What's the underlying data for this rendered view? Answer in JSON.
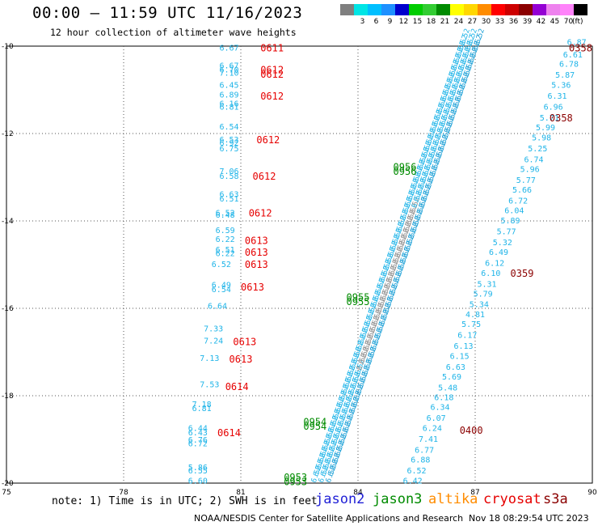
{
  "header": {
    "title": "00:00 – 11:59 UTC 11/16/2023",
    "subtitle": "12 hour collection of altimeter wave heights"
  },
  "legend": {
    "unit": "(ft)",
    "bins": [
      {
        "label": "",
        "color": "#7f7f7f"
      },
      {
        "label": "3",
        "color": "#00e5e5"
      },
      {
        "label": "6",
        "color": "#00bfff"
      },
      {
        "label": "9",
        "color": "#1e90ff"
      },
      {
        "label": "12",
        "color": "#0000cd"
      },
      {
        "label": "15",
        "color": "#00cd00"
      },
      {
        "label": "18",
        "color": "#32cd32"
      },
      {
        "label": "21",
        "color": "#008b00"
      },
      {
        "label": "24",
        "color": "#ffff00"
      },
      {
        "label": "27",
        "color": "#ffd700"
      },
      {
        "label": "30",
        "color": "#ff8c00"
      },
      {
        "label": "33",
        "color": "#ff0000"
      },
      {
        "label": "36",
        "color": "#cd0000"
      },
      {
        "label": "39",
        "color": "#8b0000"
      },
      {
        "label": "42",
        "color": "#9400d3"
      },
      {
        "label": "45",
        "color": "#ee82ee"
      },
      {
        "label": "70",
        "color": "#ff83fa"
      },
      {
        "label": "",
        "color": "#000000"
      }
    ]
  },
  "footer": {
    "note": "note: 1) Time is in UTC; 2) SWH is in feet",
    "satellites": [
      {
        "name": "jason2",
        "color": "#1f1fd6"
      },
      {
        "name": "jason3",
        "color": "#008b00"
      },
      {
        "name": "altika",
        "color": "#ff8c00"
      },
      {
        "name": "cryosat",
        "color": "#e60000"
      },
      {
        "name": "s3a",
        "color": "#8b0000"
      }
    ],
    "credit": "NOAA/NESDIS Center for Satellite Applications and Research",
    "timestamp": "Nov 18 08:29:54 UTC 2023"
  },
  "chart_data": {
    "type": "scatter",
    "title": "00:00 – 11:59 UTC 11/16/2023",
    "subtitle": "12 hour collection of altimeter wave heights",
    "xlabel": "",
    "ylabel": "",
    "xlim": [
      75,
      90
    ],
    "ylim": [
      -20,
      -10
    ],
    "xticks": [
      75,
      78,
      81,
      84,
      87,
      90
    ],
    "yticks": [
      -10,
      -12,
      -14,
      -16,
      -18,
      -20
    ],
    "ytick_labels": [
      "-10",
      "-12",
      "-14",
      "-16",
      "-18",
      "-20"
    ],
    "grid": true,
    "legend_placement": "bottom",
    "colors": {
      "swh": "#1fb4e8",
      "track_dark": "#1a9fd6",
      "track_gray": "#8f8f8f",
      "cryosat_time": "#e60000",
      "s3a_time": "#8b0000",
      "jason3_time": "#008b00"
    },
    "swh_values": [
      {
        "x": 80.7,
        "y": -10.05,
        "v": "6.67"
      },
      {
        "x": 80.7,
        "y": -10.45,
        "v": "6.67"
      },
      {
        "x": 80.7,
        "y": -10.55,
        "v": "6.70"
      },
      {
        "x": 80.7,
        "y": -10.62,
        "v": "7.10"
      },
      {
        "x": 80.7,
        "y": -10.9,
        "v": "6.45"
      },
      {
        "x": 80.7,
        "y": -11.12,
        "v": "6.89"
      },
      {
        "x": 80.7,
        "y": -11.32,
        "v": "6.16"
      },
      {
        "x": 80.7,
        "y": -11.4,
        "v": "6.81"
      },
      {
        "x": 80.7,
        "y": -11.85,
        "v": "6.54"
      },
      {
        "x": 80.7,
        "y": -12.15,
        "v": "6.53"
      },
      {
        "x": 80.7,
        "y": -12.22,
        "v": "6.92"
      },
      {
        "x": 80.7,
        "y": -12.35,
        "v": "6.75"
      },
      {
        "x": 80.7,
        "y": -12.87,
        "v": "7.06"
      },
      {
        "x": 80.7,
        "y": -12.98,
        "v": "6.58"
      },
      {
        "x": 80.7,
        "y": -13.4,
        "v": "6.63"
      },
      {
        "x": 80.7,
        "y": -13.5,
        "v": "6.51"
      },
      {
        "x": 80.6,
        "y": -13.82,
        "v": "6.52"
      },
      {
        "x": 80.6,
        "y": -13.87,
        "v": "6.48"
      },
      {
        "x": 80.6,
        "y": -14.22,
        "v": "6.59"
      },
      {
        "x": 80.6,
        "y": -14.43,
        "v": "6.22"
      },
      {
        "x": 80.6,
        "y": -14.67,
        "v": "6.51"
      },
      {
        "x": 80.6,
        "y": -14.75,
        "v": "6.22"
      },
      {
        "x": 80.5,
        "y": -15.0,
        "v": "6.52"
      },
      {
        "x": 80.5,
        "y": -15.47,
        "v": "6.49"
      },
      {
        "x": 80.5,
        "y": -15.57,
        "v": "6.54"
      },
      {
        "x": 80.4,
        "y": -15.95,
        "v": "6.64"
      },
      {
        "x": 80.3,
        "y": -16.47,
        "v": "7.33"
      },
      {
        "x": 80.3,
        "y": -16.75,
        "v": "7.24"
      },
      {
        "x": 80.2,
        "y": -17.15,
        "v": "7.13"
      },
      {
        "x": 80.2,
        "y": -17.75,
        "v": "7.53"
      },
      {
        "x": 80.0,
        "y": -18.2,
        "v": "7.18"
      },
      {
        "x": 80.0,
        "y": -18.3,
        "v": "6.81"
      },
      {
        "x": 79.9,
        "y": -18.75,
        "v": "6.44"
      },
      {
        "x": 79.9,
        "y": -18.85,
        "v": "6.43"
      },
      {
        "x": 79.9,
        "y": -19.02,
        "v": "6.76"
      },
      {
        "x": 79.9,
        "y": -19.1,
        "v": "6.72"
      },
      {
        "x": 79.9,
        "y": -19.65,
        "v": "5.86"
      },
      {
        "x": 79.9,
        "y": -19.72,
        "v": "6.55"
      },
      {
        "x": 79.9,
        "y": -19.95,
        "v": "6.60"
      },
      {
        "x": 89.6,
        "y": -9.92,
        "v": "6.87"
      },
      {
        "x": 89.5,
        "y": -10.2,
        "v": "6.61"
      },
      {
        "x": 89.4,
        "y": -10.42,
        "v": "6.78"
      },
      {
        "x": 89.3,
        "y": -10.67,
        "v": "5.87"
      },
      {
        "x": 89.2,
        "y": -10.9,
        "v": "5.36"
      },
      {
        "x": 89.1,
        "y": -11.15,
        "v": "6.31"
      },
      {
        "x": 89.0,
        "y": -11.4,
        "v": "6.96"
      },
      {
        "x": 88.9,
        "y": -11.65,
        "v": "5.71"
      },
      {
        "x": 88.8,
        "y": -11.87,
        "v": "5.99"
      },
      {
        "x": 88.7,
        "y": -12.1,
        "v": "5.98"
      },
      {
        "x": 88.6,
        "y": -12.35,
        "v": "5.25"
      },
      {
        "x": 88.5,
        "y": -12.6,
        "v": "6.74"
      },
      {
        "x": 88.4,
        "y": -12.82,
        "v": "5.96"
      },
      {
        "x": 88.3,
        "y": -13.07,
        "v": "5.77"
      },
      {
        "x": 88.2,
        "y": -13.3,
        "v": "5.66"
      },
      {
        "x": 88.1,
        "y": -13.55,
        "v": "6.72"
      },
      {
        "x": 88.0,
        "y": -13.77,
        "v": "6.04"
      },
      {
        "x": 87.9,
        "y": -14.0,
        "v": "5.89"
      },
      {
        "x": 87.8,
        "y": -14.25,
        "v": "5.77"
      },
      {
        "x": 87.7,
        "y": -14.5,
        "v": "5.32"
      },
      {
        "x": 87.6,
        "y": -14.72,
        "v": "6.49"
      },
      {
        "x": 87.5,
        "y": -14.97,
        "v": "6.12"
      },
      {
        "x": 87.4,
        "y": -15.2,
        "v": "6.10"
      },
      {
        "x": 87.3,
        "y": -15.45,
        "v": "5.31"
      },
      {
        "x": 87.2,
        "y": -15.68,
        "v": "5.79"
      },
      {
        "x": 87.1,
        "y": -15.92,
        "v": "5.34"
      },
      {
        "x": 87.0,
        "y": -16.15,
        "v": "4.81"
      },
      {
        "x": 86.9,
        "y": -16.37,
        "v": "5.75"
      },
      {
        "x": 86.8,
        "y": -16.62,
        "v": "6.17"
      },
      {
        "x": 86.7,
        "y": -16.87,
        "v": "6.13"
      },
      {
        "x": 86.6,
        "y": -17.1,
        "v": "6.15"
      },
      {
        "x": 86.5,
        "y": -17.35,
        "v": "6.63"
      },
      {
        "x": 86.4,
        "y": -17.57,
        "v": "5.69"
      },
      {
        "x": 86.3,
        "y": -17.82,
        "v": "5.48"
      },
      {
        "x": 86.2,
        "y": -18.05,
        "v": "6.18"
      },
      {
        "x": 86.1,
        "y": -18.27,
        "v": "6.34"
      },
      {
        "x": 86.0,
        "y": -18.52,
        "v": "6.07"
      },
      {
        "x": 85.9,
        "y": -18.75,
        "v": "6.24"
      },
      {
        "x": 85.8,
        "y": -19.0,
        "v": "7.41"
      },
      {
        "x": 85.7,
        "y": -19.25,
        "v": "6.77"
      },
      {
        "x": 85.6,
        "y": -19.47,
        "v": "6.88"
      },
      {
        "x": 85.5,
        "y": -19.72,
        "v": "6.52"
      },
      {
        "x": 85.4,
        "y": -19.95,
        "v": "6.42"
      }
    ],
    "time_labels": [
      {
        "x": 81.8,
        "y": -10.05,
        "v": "0611",
        "sat": "cryosat"
      },
      {
        "x": 81.8,
        "y": -10.55,
        "v": "0612",
        "sat": "cryosat"
      },
      {
        "x": 81.8,
        "y": -10.65,
        "v": "0612",
        "sat": "cryosat"
      },
      {
        "x": 81.8,
        "y": -11.15,
        "v": "0612",
        "sat": "cryosat"
      },
      {
        "x": 81.7,
        "y": -12.15,
        "v": "0612",
        "sat": "cryosat"
      },
      {
        "x": 81.6,
        "y": -12.98,
        "v": "0612",
        "sat": "cryosat"
      },
      {
        "x": 81.5,
        "y": -13.82,
        "v": "0612",
        "sat": "cryosat"
      },
      {
        "x": 81.4,
        "y": -14.45,
        "v": "0613",
        "sat": "cryosat"
      },
      {
        "x": 81.4,
        "y": -14.72,
        "v": "0613",
        "sat": "cryosat"
      },
      {
        "x": 81.4,
        "y": -15.0,
        "v": "0613",
        "sat": "cryosat"
      },
      {
        "x": 81.3,
        "y": -15.52,
        "v": "0613",
        "sat": "cryosat"
      },
      {
        "x": 81.1,
        "y": -16.77,
        "v": "0613",
        "sat": "cryosat"
      },
      {
        "x": 81.0,
        "y": -17.17,
        "v": "0613",
        "sat": "cryosat"
      },
      {
        "x": 80.9,
        "y": -17.8,
        "v": "0614",
        "sat": "cryosat"
      },
      {
        "x": 80.7,
        "y": -18.85,
        "v": "0614",
        "sat": "cryosat"
      },
      {
        "x": 85.2,
        "y": -12.77,
        "v": "0956",
        "sat": "jason3"
      },
      {
        "x": 85.2,
        "y": -12.87,
        "v": "0956",
        "sat": "jason3"
      },
      {
        "x": 84.0,
        "y": -15.75,
        "v": "0955",
        "sat": "jason3"
      },
      {
        "x": 84.0,
        "y": -15.85,
        "v": "0955",
        "sat": "jason3"
      },
      {
        "x": 82.9,
        "y": -18.6,
        "v": "0954",
        "sat": "jason3"
      },
      {
        "x": 82.9,
        "y": -18.7,
        "v": "0954",
        "sat": "jason3"
      },
      {
        "x": 82.4,
        "y": -19.87,
        "v": "0953",
        "sat": "jason3"
      },
      {
        "x": 82.4,
        "y": -19.97,
        "v": "0953",
        "sat": "jason3"
      },
      {
        "x": 89.7,
        "y": -10.05,
        "v": "0358",
        "sat": "s3a"
      },
      {
        "x": 89.2,
        "y": -11.65,
        "v": "0358",
        "sat": "s3a"
      },
      {
        "x": 88.2,
        "y": -15.2,
        "v": "0359",
        "sat": "s3a"
      },
      {
        "x": 86.9,
        "y": -18.8,
        "v": "0400",
        "sat": "s3a"
      }
    ],
    "track": {
      "from": {
        "x": 83.1,
        "y": -20.0
      },
      "to": {
        "x": 86.9,
        "y": -10.0
      },
      "strands": 3,
      "label_value": "6.52"
    }
  }
}
